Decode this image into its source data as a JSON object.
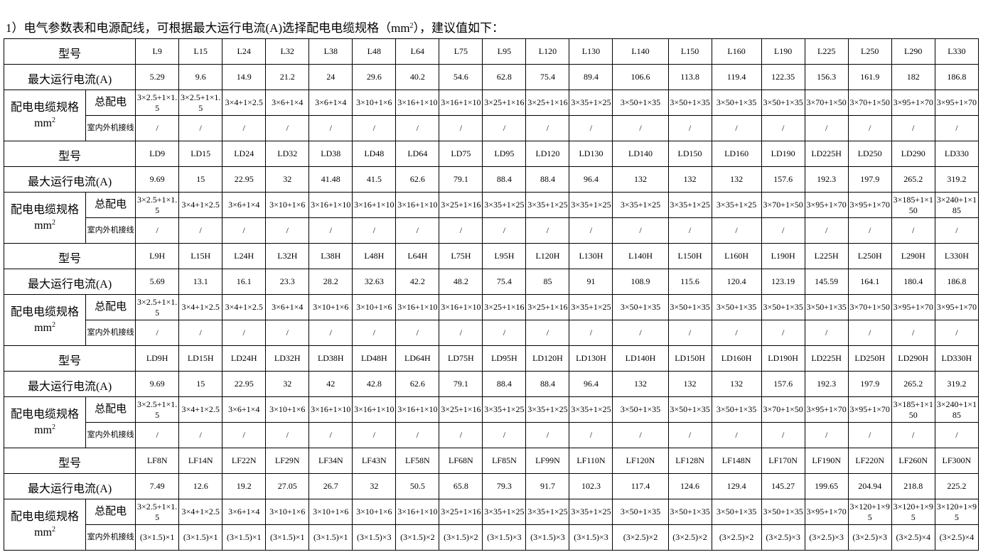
{
  "heading": {
    "text": "1）电气参数表和电源配线，可根据最大运行电流(A)选择配电电缆规格（mm",
    "sup": "2",
    "tail": "），建议值如下："
  },
  "row_labels": {
    "model": "型号",
    "current": "最大运行电流(A)",
    "cable": "配电电缆规格",
    "unit": "mm",
    "unit_sup": "2",
    "main": "总配电",
    "wiring": "室内外机接线"
  },
  "blocks": [
    {
      "models": [
        "L9",
        "L15",
        "L24",
        "L32",
        "L38",
        "L48",
        "L64",
        "L75",
        "L95",
        "L120",
        "L130",
        "L140",
        "L150",
        "L160",
        "L190",
        "L225",
        "L250",
        "L290",
        "L330"
      ],
      "currents": [
        5.29,
        9.6,
        14.9,
        21.2,
        24,
        29.6,
        40.2,
        54.6,
        62.8,
        75.4,
        89.4,
        106.6,
        113.8,
        119.4,
        122.35,
        156.3,
        161.9,
        182,
        186.8
      ],
      "cables": [
        "3×2.5+1×1.5",
        "3×2.5+1×1.5",
        "3×4+1×2.5",
        "3×6+1×4",
        "3×6+1×4",
        "3×10+1×6",
        "3×16+1×10",
        "3×16+1×10",
        "3×25+1×16",
        "3×25+1×16",
        "3×35+1×25",
        "3×50+1×35",
        "3×50+1×35",
        "3×50+1×35",
        "3×50+1×35",
        "3×70+1×50",
        "3×70+1×50",
        "3×95+1×70",
        "3×95+1×70"
      ],
      "wiring": [
        "/",
        "/",
        "/",
        "/",
        "/",
        "/",
        "/",
        "/",
        "/",
        "/",
        "/",
        "/",
        "/",
        "/",
        "/",
        "/",
        "/",
        "/",
        "/"
      ]
    },
    {
      "models": [
        "LD9",
        "LD15",
        "LD24",
        "LD32",
        "LD38",
        "LD48",
        "LD64",
        "LD75",
        "LD95",
        "LD120",
        "LD130",
        "LD140",
        "LD150",
        "LD160",
        "LD190",
        "LD225H",
        "LD250",
        "LD290",
        "LD330"
      ],
      "currents": [
        9.69,
        15,
        22.95,
        32,
        41.48,
        41.5,
        62.6,
        79.1,
        88.4,
        88.4,
        96.4,
        132,
        132,
        132,
        157.6,
        192.3,
        197.9,
        265.2,
        319.2
      ],
      "cables": [
        "3×2.5+1×1.5",
        "3×4+1×2.5",
        "3×6+1×4",
        "3×10+1×6",
        "3×16+1×10",
        "3×16+1×10",
        "3×16+1×10",
        "3×25+1×16",
        "3×35+1×25",
        "3×35+1×25",
        "3×35+1×25",
        "3×35+1×25",
        "3×35+1×25",
        "3×35+1×25",
        "3×70+1×50",
        "3×95+1×70",
        "3×95+1×70",
        "3×185+1×150",
        "3×240+1×185"
      ],
      "wiring": [
        "/",
        "/",
        "/",
        "/",
        "/",
        "/",
        "/",
        "/",
        "/",
        "/",
        "/",
        "/",
        "/",
        "/",
        "/",
        "/",
        "/",
        "/",
        "/"
      ]
    },
    {
      "models": [
        "L9H",
        "L15H",
        "L24H",
        "L32H",
        "L38H",
        "L48H",
        "L64H",
        "L75H",
        "L95H",
        "L120H",
        "L130H",
        "L140H",
        "L150H",
        "L160H",
        "L190H",
        "L225H",
        "L250H",
        "L290H",
        "L330H"
      ],
      "currents": [
        5.69,
        13.1,
        16.1,
        23.3,
        28.2,
        32.63,
        42.2,
        48.2,
        75.4,
        85,
        91,
        108.9,
        115.6,
        120.4,
        123.19,
        145.59,
        164.1,
        180.4,
        186.8
      ],
      "cables": [
        "3×2.5+1×1.5",
        "3×4+1×2.5",
        "3×4+1×2.5",
        "3×6+1×4",
        "3×10+1×6",
        "3×10+1×6",
        "3×16+1×10",
        "3×16+1×10",
        "3×25+1×16",
        "3×25+1×16",
        "3×35+1×25",
        "3×50+1×35",
        "3×50+1×35",
        "3×50+1×35",
        "3×50+1×35",
        "3×50+1×35",
        "3×70+1×50",
        "3×95+1×70",
        "3×95+1×70"
      ],
      "wiring": [
        "/",
        "/",
        "/",
        "/",
        "/",
        "/",
        "/",
        "/",
        "/",
        "/",
        "/",
        "/",
        "/",
        "/",
        "/",
        "/",
        "/",
        "/",
        "/"
      ]
    },
    {
      "models": [
        "LD9H",
        "LD15H",
        "LD24H",
        "LD32H",
        "LD38H",
        "LD48H",
        "LD64H",
        "LD75H",
        "LD95H",
        "LD120H",
        "LD130H",
        "LD140H",
        "LD150H",
        "LD160H",
        "LD190H",
        "LD225H",
        "LD250H",
        "LD290H",
        "LD330H"
      ],
      "currents": [
        9.69,
        15,
        22.95,
        32,
        42,
        42.8,
        62.6,
        79.1,
        88.4,
        88.4,
        96.4,
        132,
        132,
        132,
        157.6,
        192.3,
        197.9,
        265.2,
        319.2
      ],
      "cables": [
        "3×2.5+1×1.5",
        "3×4+1×2.5",
        "3×6+1×4",
        "3×10+1×6",
        "3×16+1×10",
        "3×16+1×10",
        "3×16+1×10",
        "3×25+1×16",
        "3×35+1×25",
        "3×35+1×25",
        "3×35+1×25",
        "3×50+1×35",
        "3×50+1×35",
        "3×50+1×35",
        "3×70+1×50",
        "3×95+1×70",
        "3×95+1×70",
        "3×185+1×150",
        "3×240+1×185"
      ],
      "wiring": [
        "/",
        "/",
        "/",
        "/",
        "/",
        "/",
        "/",
        "/",
        "/",
        "/",
        "/",
        "/",
        "/",
        "/",
        "/",
        "/",
        "/",
        "/",
        "/"
      ]
    },
    {
      "models": [
        "LF8N",
        "LF14N",
        "LF22N",
        "LF29N",
        "LF34N",
        "LF43N",
        "LF58N",
        "LF68N",
        "LF85N",
        "LF99N",
        "LF110N",
        "LF120N",
        "LF128N",
        "LF148N",
        "LF170N",
        "LF190N",
        "LF220N",
        "LF260N",
        "LF300N"
      ],
      "currents": [
        7.49,
        12.6,
        19.2,
        27.05,
        26.7,
        32,
        50.5,
        65.8,
        79.3,
        91.7,
        102.3,
        117.4,
        124.6,
        129.4,
        145.27,
        199.65,
        204.94,
        218.8,
        225.2
      ],
      "cables": [
        "3×2.5+1×1.5",
        "3×4+1×2.5",
        "3×6+1×4",
        "3×10+1×6",
        "3×10+1×6",
        "3×10+1×6",
        "3×16+1×10",
        "3×25+1×16",
        "3×35+1×25",
        "3×35+1×25",
        "3×35+1×25",
        "3×50+1×35",
        "3×50+1×35",
        "3×50+1×35",
        "3×50+1×35",
        "3×95+1×70",
        "3×120+1×95",
        "3×120+1×95",
        "3×120+1×95"
      ],
      "wiring": [
        "(3×1.5)×1",
        "(3×1.5)×1",
        "(3×1.5)×1",
        "(3×1.5)×1",
        "(3×1.5)×1",
        "(3×1.5)×3",
        "(3×1.5)×2",
        "(3×1.5)×2",
        "(3×1.5)×3",
        "(3×1.5)×3",
        "(3×1.5)×3",
        "(3×2.5)×2",
        "(3×2.5)×2",
        "(3×2.5)×2",
        "(3×2.5)×3",
        "(3×2.5)×3",
        "(3×2.5)×3",
        "(3×2.5)×4",
        "(3×2.5)×4"
      ]
    }
  ]
}
